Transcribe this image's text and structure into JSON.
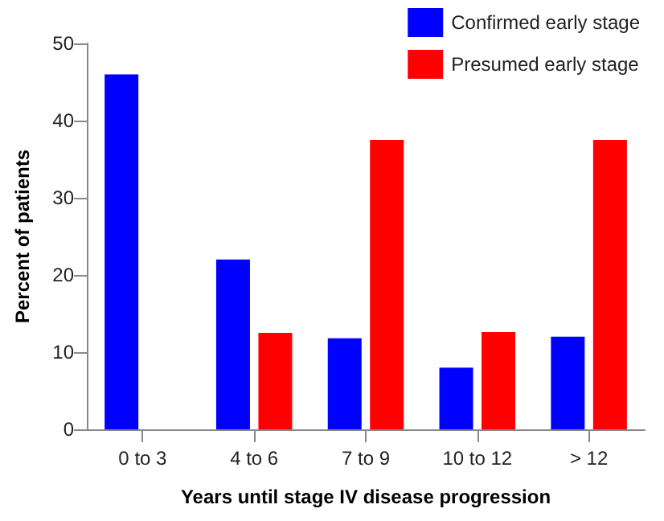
{
  "chart_data": {
    "type": "bar",
    "xlabel": "Years until stage IV disease progression",
    "ylabel": "Percent of patients",
    "categories": [
      "0 to 3",
      "4 to 6",
      "7 to 9",
      "10 to 12",
      "> 12"
    ],
    "series": [
      {
        "name": "Confirmed early stage",
        "color": "#0000ff",
        "values": [
          46,
          22,
          11.8,
          8,
          12
        ]
      },
      {
        "name": "Presumed early stage",
        "color": "#ff0000",
        "values": [
          0,
          12.5,
          37.5,
          12.6,
          37.5
        ]
      }
    ],
    "ylim": [
      0,
      50
    ],
    "yticks": [
      0,
      10,
      20,
      30,
      40,
      50
    ],
    "grid": false,
    "legend": "top right"
  }
}
